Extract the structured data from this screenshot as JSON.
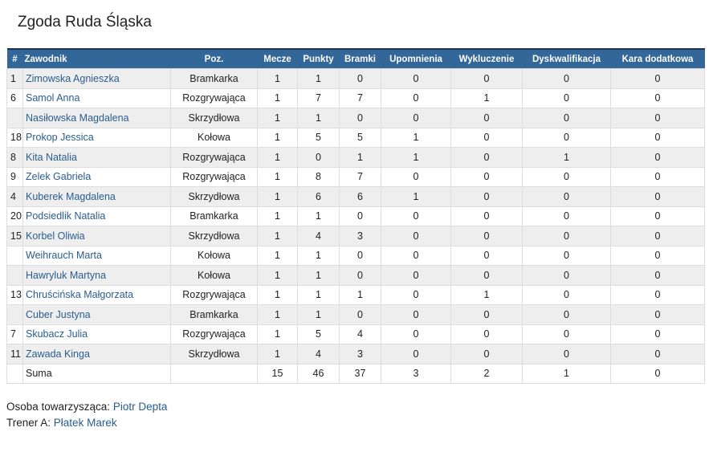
{
  "header": {
    "title": "Zgoda Ruda Śląska"
  },
  "table": {
    "columns": [
      "#",
      "Zawodnik",
      "Poz.",
      "Mecze",
      "Punkty",
      "Bramki",
      "Upomnienia",
      "Wykluczenie",
      "Dyskwalifikacja",
      "Kara dodatkowa"
    ],
    "rows": [
      [
        1,
        "Zimowska Agnieszka",
        "Bramkarka",
        1,
        1,
        0,
        0,
        0,
        0,
        0
      ],
      [
        6,
        "Samol Anna",
        "Rozgrywająca",
        1,
        7,
        7,
        0,
        1,
        0,
        0
      ],
      [
        null,
        "Nasiłowska Magdalena",
        "Skrzydłowa",
        1,
        1,
        0,
        0,
        0,
        0,
        0
      ],
      [
        18,
        "Prokop Jessica",
        "Kołowa",
        1,
        5,
        5,
        1,
        0,
        0,
        0
      ],
      [
        8,
        "Kita Natalia",
        "Rozgrywająca",
        1,
        0,
        1,
        1,
        0,
        1,
        0
      ],
      [
        9,
        "Zelek Gabriela",
        "Rozgrywająca",
        1,
        8,
        7,
        0,
        0,
        0,
        0
      ],
      [
        4,
        "Kuberek Magdalena",
        "Skrzydłowa",
        1,
        6,
        6,
        1,
        0,
        0,
        0
      ],
      [
        20,
        "Podsiedlik Natalia",
        "Bramkarka",
        1,
        1,
        0,
        0,
        0,
        0,
        0
      ],
      [
        15,
        "Korbel Oliwia",
        "Skrzydłowa",
        1,
        4,
        3,
        0,
        0,
        0,
        0
      ],
      [
        null,
        "Weihrauch Marta",
        "Kołowa",
        1,
        1,
        0,
        0,
        0,
        0,
        0
      ],
      [
        null,
        "Hawryluk Martyna",
        "Kołowa",
        1,
        1,
        0,
        0,
        0,
        0,
        0
      ],
      [
        13,
        "Chruścińska Małgorzata",
        "Rozgrywająca",
        1,
        1,
        1,
        0,
        1,
        0,
        0
      ],
      [
        null,
        "Cuber Justyna",
        "Bramkarka",
        1,
        1,
        0,
        0,
        0,
        0,
        0
      ],
      [
        7,
        "Skubacz Julia",
        "Rozgrywająca",
        1,
        5,
        4,
        0,
        0,
        0,
        0
      ],
      [
        11,
        "Zawada Kinga",
        "Skrzydłowa",
        1,
        4,
        3,
        0,
        0,
        0,
        0
      ]
    ],
    "total": {
      "label": "Suma",
      "values": [
        15,
        46,
        37,
        3,
        2,
        1,
        0
      ]
    }
  },
  "footer": {
    "companion": {
      "label": "Osoba towarzysząca:",
      "name": "Piotr Depta"
    },
    "coach": {
      "label": "Trener A:",
      "name": "Płatek Marek"
    }
  }
}
